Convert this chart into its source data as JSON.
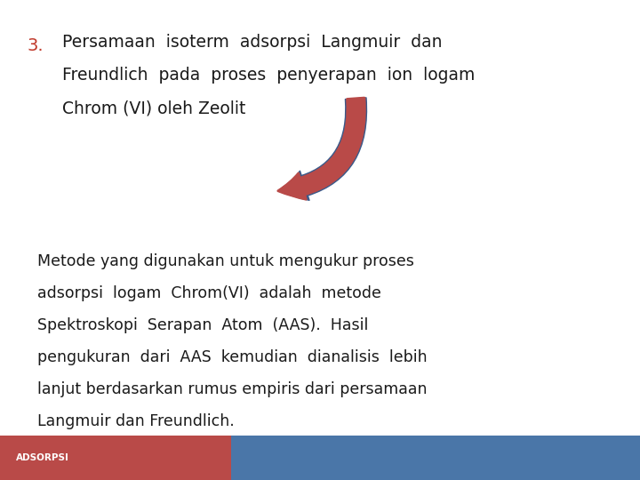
{
  "bg_color": "#ffffff",
  "number_text": "3.",
  "number_color": "#c0392b",
  "title_line1": "Persamaan  isoterm  adsorpsi  Langmuir  dan",
  "title_line2": "Freundlich  pada  proses  penyerapan  ion  logam",
  "title_line3": "Chrom (VI) oleh Zeolit",
  "title_color": "#1a1a1a",
  "body_color": "#1a1a1a",
  "footer_left_color": "#b94a48",
  "footer_right_color": "#4a76a8",
  "footer_text": "ADSORPSI",
  "footer_text_color": "#ffffff",
  "arrow_fill_color": "#b94a48",
  "arrow_edge_color": "#3a5a8a",
  "title_fontsize": 13.5,
  "body_fontsize": 12.5,
  "number_fontsize": 14,
  "footer_fontsize": 7.5,
  "body_lines": [
    "Metode yang digunakan untuk mengukur proses",
    "adsorpsi  logam  Chrom(VI)  adalah  metode",
    "Spektroskopi  Serapan  Atom  (AAS).  Hasil",
    "pengukuran  dari  AAS  kemudian  dianalisis  lebih",
    "lanjut berdasarkan rumus empiris dari persamaan",
    "Langmuir dan Freundlich."
  ]
}
